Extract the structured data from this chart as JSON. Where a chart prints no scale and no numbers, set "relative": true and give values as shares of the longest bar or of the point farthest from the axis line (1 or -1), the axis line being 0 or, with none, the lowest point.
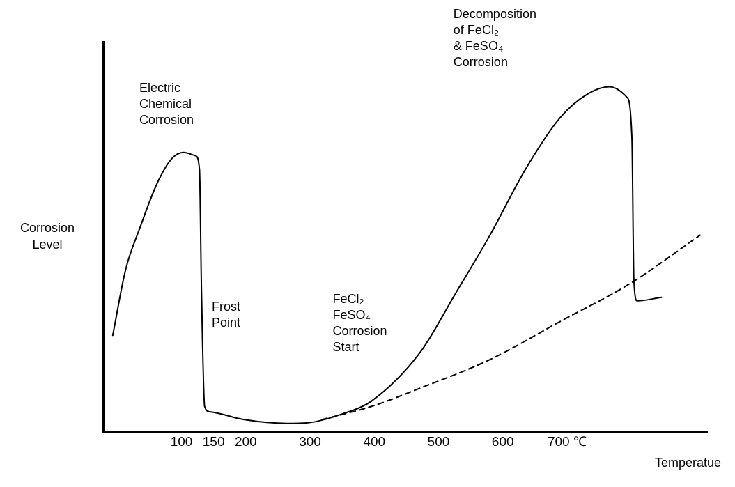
{
  "chart_data": {
    "type": "line",
    "relative": true,
    "xlabel": "Temperatue",
    "ylabel": "Corrosion Level",
    "xlim": [
      -22,
      918
    ],
    "xticks": [
      100,
      150,
      200,
      300,
      400,
      500,
      600,
      {
        "value": 700,
        "label": "700 ℃"
      }
    ],
    "marker": "none",
    "grid": false,
    "legend": false,
    "series": [
      {
        "color": "#000000",
        "line_style": "solid",
        "x": [
          -7,
          13,
          35,
          62,
          84,
          103,
          122,
          128,
          131,
          136,
          144,
          198,
          264,
          297,
          351,
          395,
          471,
          526,
          580,
          635,
          689,
          733,
          766,
          793,
          801,
          804,
          809,
          847
        ],
        "values": [
          0.28,
          0.47,
          0.59,
          0.72,
          0.79,
          0.81,
          0.8,
          0.76,
          0.42,
          0.074,
          0.059,
          0.036,
          0.025,
          0.027,
          0.053,
          0.089,
          0.23,
          0.4,
          0.57,
          0.76,
          0.91,
          0.98,
          1.0,
          0.97,
          0.85,
          0.44,
          0.38,
          0.39
        ]
      },
      {
        "color": "#000000",
        "line_style": "dashed",
        "x": [
          318,
          395,
          471,
          580,
          689,
          798,
          907
        ],
        "values": [
          0.036,
          0.074,
          0.127,
          0.21,
          0.32,
          0.43,
          0.57
        ]
      }
    ],
    "annotations": [
      "Electric\nChemical\nCorrosion",
      "Frost\nPoint",
      "FeCl₂\nFeSO₄\nCorrosion\nStart",
      "Decomposition\nof FeCl₂\n& FeSO₄\nCorrosion"
    ]
  }
}
